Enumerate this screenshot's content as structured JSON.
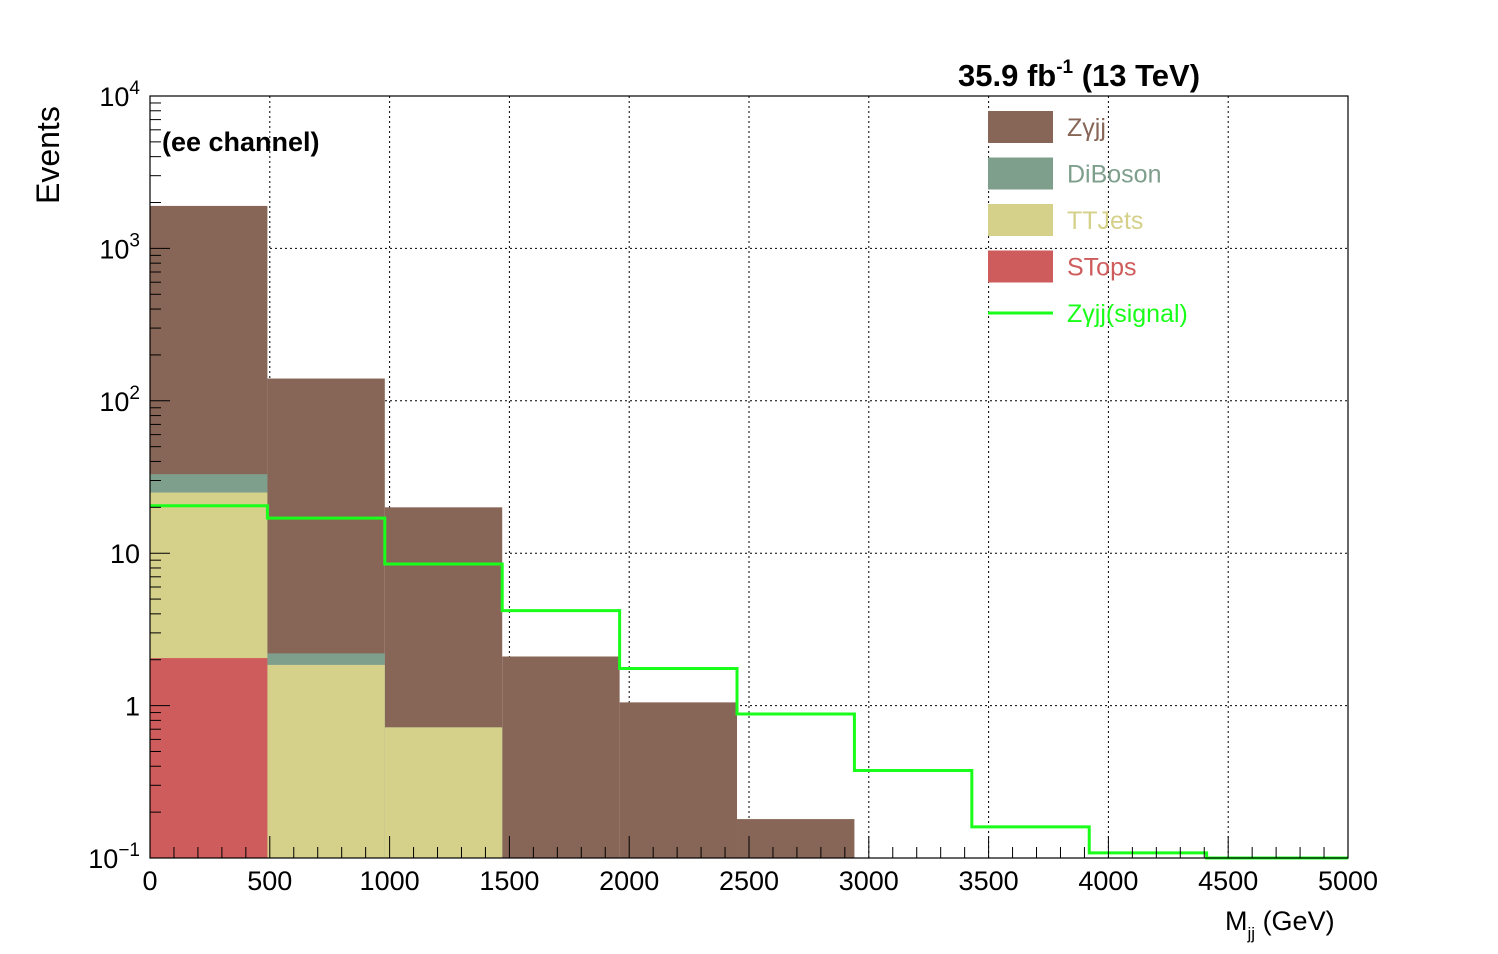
{
  "chart_data": {
    "type": "bar",
    "stacked": true,
    "log_y": true,
    "title": {
      "lumi": "35.9 fb",
      "lumi_sup": "-1",
      "energy": " (13 TeV)"
    },
    "annotation": "(ee channel)",
    "xlabel": {
      "main": "M",
      "sub": "jj",
      "unit": " (GeV)"
    },
    "ylabel": "Events",
    "xlim": [
      0,
      5000
    ],
    "ylim": [
      0.1,
      10000
    ],
    "grid": true,
    "legend_position": "top-right",
    "x_ticks": [
      "0",
      "500",
      "1000",
      "1500",
      "2000",
      "2500",
      "3000",
      "3500",
      "4000",
      "4500",
      "5000"
    ],
    "x_tick_values": [
      0,
      500,
      1000,
      1500,
      2000,
      2500,
      3000,
      3500,
      4000,
      4500,
      5000
    ],
    "y_ticks": [
      {
        "value": 0.1,
        "base": "10",
        "sup": "−1"
      },
      {
        "value": 1,
        "base": "1",
        "sup": ""
      },
      {
        "value": 10,
        "base": "10",
        "sup": ""
      },
      {
        "value": 100,
        "base": "10",
        "sup": "2"
      },
      {
        "value": 1000,
        "base": "10",
        "sup": "3"
      },
      {
        "value": 10000,
        "base": "10",
        "sup": "4"
      }
    ],
    "bin_edges": [
      0,
      490,
      980,
      1470,
      1960,
      2450,
      2940,
      3430,
      3920,
      4410,
      5000
    ],
    "stack_order_bottom_to_top": [
      "STops",
      "TTJets",
      "DiBoson",
      "Zγjj"
    ],
    "series": [
      {
        "name": "Zγjj",
        "color": "#876657",
        "stack_top": [
          1900,
          140,
          20,
          2.1,
          1.05,
          0.18,
          0,
          0,
          0,
          0
        ]
      },
      {
        "name": "DiBoson",
        "color": "#7f9f8d",
        "stack_top": [
          33,
          2.2,
          0.72,
          0,
          0,
          0,
          0,
          0,
          0,
          0
        ]
      },
      {
        "name": "TTJets",
        "color": "#d5d08a",
        "stack_top": [
          25,
          1.85,
          0.72,
          0,
          0,
          0,
          0,
          0,
          0,
          0
        ]
      },
      {
        "name": "STops",
        "color": "#cf5c5c",
        "stack_top": [
          2.05,
          0,
          0,
          0,
          0,
          0,
          0,
          0,
          0,
          0
        ]
      }
    ],
    "signal": {
      "name": "Zγjj(signal)",
      "color": "#19ff19",
      "values": [
        20.5,
        17,
        8.5,
        4.2,
        1.75,
        0.88,
        0.375,
        0.16,
        0.108,
        0.1
      ]
    },
    "legend": [
      {
        "label": "Zγjj",
        "color": "#876657",
        "kind": "box"
      },
      {
        "label": "DiBoson",
        "color": "#7f9f8d",
        "kind": "box"
      },
      {
        "label": "TTJets",
        "color": "#d5d08a",
        "kind": "box"
      },
      {
        "label": "STops",
        "color": "#cf5c5c",
        "kind": "box"
      },
      {
        "label": "Zγjj(signal)",
        "color": "#19ff19",
        "kind": "line"
      }
    ]
  }
}
